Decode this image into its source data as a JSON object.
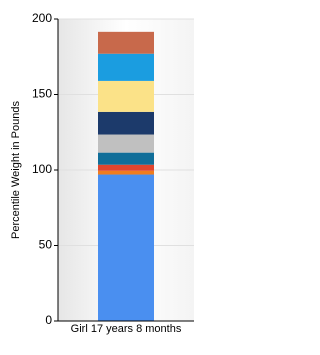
{
  "chart_data": {
    "type": "stacked-bar",
    "y_label": "Percentile Weight in Pounds",
    "categories": [
      "Girl 17 years 8 months"
    ],
    "series": [
      {
        "color": "#4a8ff0",
        "values": [
          97
        ]
      },
      {
        "color": "#f07d1e",
        "values": [
          2.5
        ]
      },
      {
        "color": "#e0452e",
        "values": [
          4
        ]
      },
      {
        "color": "#106e99",
        "values": [
          8
        ]
      },
      {
        "color": "#c0c0c0",
        "values": [
          12
        ]
      },
      {
        "color": "#1c3a6b",
        "values": [
          15
        ]
      },
      {
        "color": "#fbe288",
        "values": [
          20.5
        ]
      },
      {
        "color": "#1b9de0",
        "values": [
          18
        ]
      },
      {
        "color": "#c8694b",
        "values": [
          14.5
        ]
      }
    ],
    "ylim": [
      0,
      200
    ],
    "yticks": [
      0,
      50,
      100,
      150,
      200
    ],
    "grid": true
  }
}
